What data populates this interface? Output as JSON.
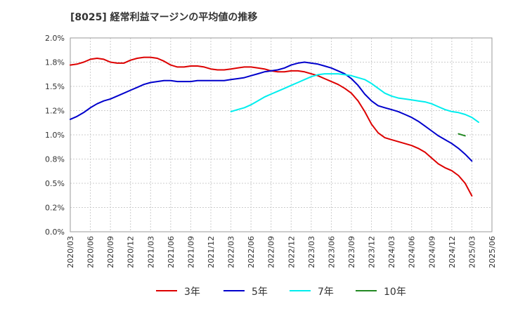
{
  "chart_data": {
    "type": "line",
    "title": "[8025]  経常利益マージンの平均値の推移",
    "xlabel": "",
    "ylabel": "",
    "ylim": [
      0,
      2.0
    ],
    "yticks": [
      "0.0%",
      "0.2%",
      "0.5%",
      "0.8%",
      "1.0%",
      "1.2%",
      "1.5%",
      "1.8%",
      "2.0%"
    ],
    "xticks": [
      "2020/03",
      "2020/06",
      "2020/09",
      "2020/12",
      "2021/03",
      "2021/06",
      "2021/09",
      "2021/12",
      "2022/03",
      "2022/06",
      "2022/09",
      "2022/12",
      "2023/03",
      "2023/06",
      "2023/09",
      "2023/12",
      "2024/03",
      "2024/06",
      "2024/09",
      "2024/12",
      "2025/03",
      "2025/06"
    ],
    "grid": true,
    "legend_position": "bottom",
    "series": [
      {
        "name": "3年",
        "color": "#dd0000",
        "start": "2020/03",
        "values": [
          1.72,
          1.73,
          1.75,
          1.78,
          1.79,
          1.78,
          1.75,
          1.74,
          1.74,
          1.77,
          1.79,
          1.8,
          1.8,
          1.79,
          1.76,
          1.72,
          1.7,
          1.7,
          1.71,
          1.71,
          1.7,
          1.68,
          1.67,
          1.67,
          1.68,
          1.69,
          1.7,
          1.7,
          1.69,
          1.68,
          1.66,
          1.65,
          1.65,
          1.66,
          1.66,
          1.65,
          1.63,
          1.61,
          1.58,
          1.55,
          1.52,
          1.48,
          1.43,
          1.35,
          1.24,
          1.11,
          1.02,
          0.97,
          0.95,
          0.93,
          0.91,
          0.89,
          0.86,
          0.82,
          0.76,
          0.7,
          0.66,
          0.63,
          0.58,
          0.5,
          0.37
        ]
      },
      {
        "name": "5年",
        "color": "#0000cc",
        "start": "2020/03",
        "values": [
          1.16,
          1.19,
          1.23,
          1.28,
          1.32,
          1.35,
          1.37,
          1.4,
          1.43,
          1.46,
          1.49,
          1.52,
          1.54,
          1.55,
          1.56,
          1.56,
          1.55,
          1.55,
          1.55,
          1.56,
          1.56,
          1.56,
          1.56,
          1.56,
          1.57,
          1.58,
          1.59,
          1.61,
          1.63,
          1.65,
          1.66,
          1.67,
          1.69,
          1.72,
          1.74,
          1.75,
          1.74,
          1.73,
          1.71,
          1.69,
          1.66,
          1.63,
          1.58,
          1.51,
          1.42,
          1.35,
          1.3,
          1.28,
          1.26,
          1.24,
          1.21,
          1.18,
          1.14,
          1.09,
          1.04,
          0.99,
          0.95,
          0.91,
          0.86,
          0.8,
          0.73
        ]
      },
      {
        "name": "7年",
        "color": "#00eeee",
        "start": "2022/03",
        "values": [
          1.24,
          1.26,
          1.28,
          1.31,
          1.35,
          1.39,
          1.42,
          1.45,
          1.48,
          1.51,
          1.54,
          1.57,
          1.6,
          1.62,
          1.63,
          1.63,
          1.63,
          1.62,
          1.61,
          1.59,
          1.57,
          1.53,
          1.48,
          1.43,
          1.4,
          1.38,
          1.37,
          1.36,
          1.35,
          1.34,
          1.32,
          1.29,
          1.26,
          1.24,
          1.23,
          1.21,
          1.18,
          1.13
        ]
      },
      {
        "name": "10年",
        "color": "#228822",
        "start": "2025/01",
        "values": [
          1.01,
          0.99
        ]
      }
    ]
  }
}
